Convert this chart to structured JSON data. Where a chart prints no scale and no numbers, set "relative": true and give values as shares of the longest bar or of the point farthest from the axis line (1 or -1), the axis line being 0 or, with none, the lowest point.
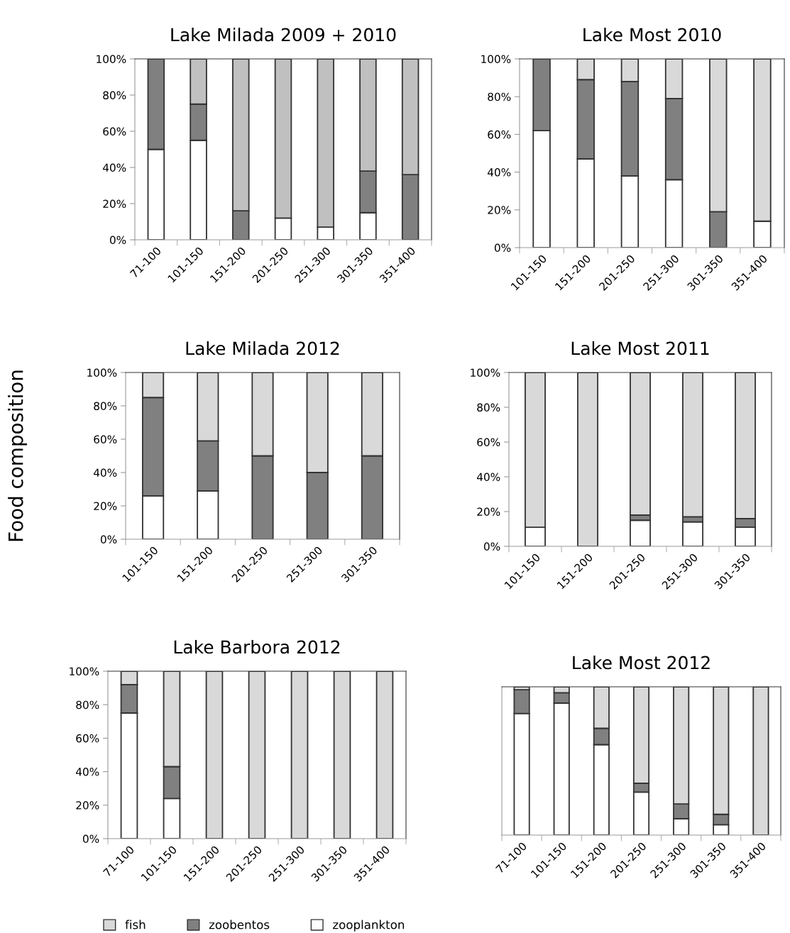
{
  "chart_data": [
    {
      "type": "bar",
      "stacked": true,
      "title": "Lake Milada 2009 + 2010",
      "categories": [
        "71-100",
        "101-150",
        "151-200",
        "201-250",
        "251-300",
        "301-350",
        "351-400"
      ],
      "ylim": [
        0,
        100
      ],
      "yticks": [
        {
          "value": 0,
          "label": "0%"
        },
        {
          "value": 20,
          "label": "20%"
        },
        {
          "value": 40,
          "label": "40%"
        },
        {
          "value": 60,
          "label": "60%"
        },
        {
          "value": 80,
          "label": "80%"
        },
        {
          "value": 100,
          "label": "100%"
        }
      ],
      "grid": false,
      "legend": false,
      "series": [
        {
          "color": "#ffffff",
          "values": [
            50,
            55,
            0,
            12,
            7,
            15,
            0
          ]
        },
        {
          "color": "#808080",
          "values": [
            50,
            20,
            16,
            0,
            0,
            23,
            36
          ]
        },
        {
          "color": "#c0c0c0",
          "values": [
            0,
            25,
            84,
            88,
            93,
            62,
            64
          ]
        }
      ]
    },
    {
      "type": "bar",
      "stacked": true,
      "title": "Lake Most 2010",
      "categories": [
        "101-150",
        "151-200",
        "201-250",
        "251-300",
        "301-350",
        "351-400"
      ],
      "ylim": [
        0,
        100
      ],
      "yticks": [
        {
          "value": 0,
          "label": "0%"
        },
        {
          "value": 20,
          "label": "20%"
        },
        {
          "value": 40,
          "label": "40%"
        },
        {
          "value": 60,
          "label": "60%"
        },
        {
          "value": 80,
          "label": "80%"
        },
        {
          "value": 100,
          "label": "100%"
        }
      ],
      "grid": false,
      "legend": false,
      "series": [
        {
          "color": "#ffffff",
          "values": [
            62,
            47,
            38,
            36,
            0,
            14
          ]
        },
        {
          "color": "#808080",
          "values": [
            38,
            42,
            50,
            43,
            19,
            0
          ]
        },
        {
          "color": "#d9d9d9",
          "values": [
            0,
            11,
            12,
            21,
            81,
            86
          ]
        }
      ]
    },
    {
      "type": "bar",
      "stacked": true,
      "title": "Lake Milada 2012",
      "ylabel": "Food composition",
      "categories": [
        "101-150",
        "151-200",
        "201-250",
        "251-300",
        "301-350"
      ],
      "ylim": [
        0,
        100
      ],
      "yticks": [
        {
          "value": 0,
          "label": "0%"
        },
        {
          "value": 20,
          "label": "20%"
        },
        {
          "value": 40,
          "label": "40%"
        },
        {
          "value": 60,
          "label": "60%"
        },
        {
          "value": 80,
          "label": "80%"
        },
        {
          "value": 100,
          "label": "100%"
        }
      ],
      "grid": false,
      "legend": false,
      "series": [
        {
          "color": "#ffffff",
          "values": [
            26,
            29,
            0,
            0,
            0
          ]
        },
        {
          "color": "#808080",
          "values": [
            59,
            30,
            50,
            40,
            50
          ]
        },
        {
          "color": "#d9d9d9",
          "values": [
            15,
            41,
            50,
            60,
            50
          ]
        }
      ]
    },
    {
      "type": "bar",
      "stacked": true,
      "title": "Lake Most 2011",
      "categories": [
        "101-150",
        "151-200",
        "201-250",
        "251-300",
        "301-350"
      ],
      "ylim": [
        0,
        100
      ],
      "yticks": [
        {
          "value": 0,
          "label": "0%"
        },
        {
          "value": 20,
          "label": "20%"
        },
        {
          "value": 40,
          "label": "40%"
        },
        {
          "value": 60,
          "label": "60%"
        },
        {
          "value": 80,
          "label": "80%"
        },
        {
          "value": 100,
          "label": "100%"
        }
      ],
      "grid": false,
      "legend": false,
      "series": [
        {
          "color": "#ffffff",
          "values": [
            11,
            0,
            15,
            14,
            11
          ]
        },
        {
          "color": "#808080",
          "values": [
            0,
            0,
            3,
            3,
            5
          ]
        },
        {
          "color": "#d9d9d9",
          "values": [
            89,
            100,
            82,
            83,
            84
          ]
        }
      ]
    },
    {
      "type": "bar",
      "stacked": true,
      "title": "Lake Barbora 2012",
      "categories": [
        "71-100",
        "101-150",
        "151-200",
        "201-250",
        "251-300",
        "301-350",
        "351-400"
      ],
      "ylim": [
        0,
        100
      ],
      "yticks": [
        {
          "value": 0,
          "label": "0%"
        },
        {
          "value": 20,
          "label": "20%"
        },
        {
          "value": 40,
          "label": "40%"
        },
        {
          "value": 60,
          "label": "60%"
        },
        {
          "value": 80,
          "label": "80%"
        },
        {
          "value": 100,
          "label": "100%"
        }
      ],
      "grid": false,
      "legend": "bottom",
      "series": [
        {
          "name": "zooplankton",
          "color": "#ffffff",
          "values": [
            75,
            24,
            0,
            0,
            0,
            0,
            0
          ]
        },
        {
          "name": "zoobentos",
          "color": "#808080",
          "values": [
            17,
            19,
            0,
            0,
            0,
            0,
            0
          ]
        },
        {
          "name": "fish",
          "color": "#d9d9d9",
          "values": [
            8,
            57,
            100,
            100,
            100,
            100,
            100
          ]
        }
      ]
    },
    {
      "type": "bar",
      "stacked": true,
      "relative": true,
      "title": "Lake Most 2012",
      "categories": [
        "71-100",
        "101-150",
        "151-200",
        "201-250",
        "251-300",
        "301-350",
        "351-400"
      ],
      "grid": false,
      "legend": false,
      "series": [
        {
          "color": "#ffffff",
          "values": [
            0.82,
            0.89,
            0.61,
            0.29,
            0.11,
            0.07,
            0
          ]
        },
        {
          "color": "#808080",
          "values": [
            0.16,
            0.07,
            0.11,
            0.06,
            0.1,
            0.07,
            0
          ]
        },
        {
          "color": "#d9d9d9",
          "values": [
            0.02,
            0.04,
            0.28,
            0.65,
            0.79,
            0.86,
            1
          ]
        }
      ]
    }
  ]
}
